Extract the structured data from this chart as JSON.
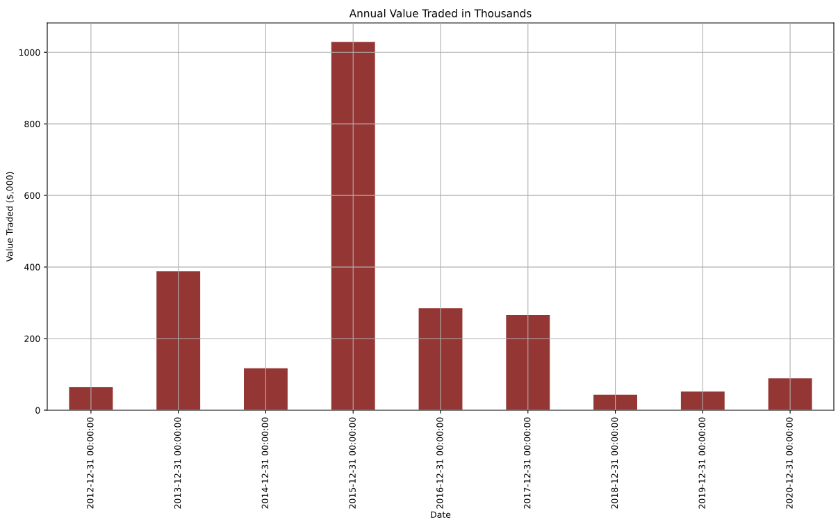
{
  "chart_data": {
    "type": "bar",
    "title": "Annual Value Traded in Thousands",
    "xlabel": "Date",
    "ylabel": "Value Traded ($,000)",
    "categories": [
      "2012-12-31 00:00:00",
      "2013-12-31 00:00:00",
      "2014-12-31 00:00:00",
      "2015-12-31 00:00:00",
      "2016-12-31 00:00:00",
      "2017-12-31 00:00:00",
      "2018-12-31 00:00:00",
      "2019-12-31 00:00:00",
      "2020-12-31 00:00:00"
    ],
    "values": [
      64,
      388,
      117,
      1029,
      285,
      266,
      43,
      52,
      89
    ],
    "color": "#943634",
    "ylim": [
      0,
      1082
    ],
    "yticks": [
      0,
      200,
      400,
      600,
      800,
      1000
    ],
    "grid": true
  }
}
